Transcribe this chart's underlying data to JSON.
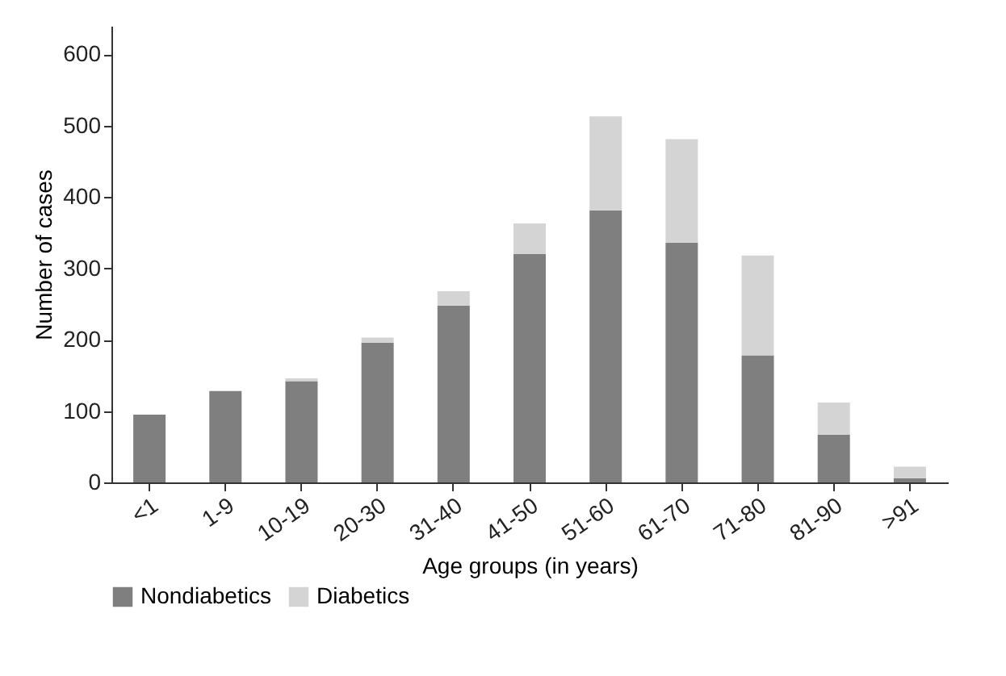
{
  "chart_data": {
    "type": "bar",
    "stacked": true,
    "xlabel": "Age groups (in years)",
    "ylabel": "Number of cases",
    "categories": [
      "<1",
      "1-9",
      "10-19",
      "20-30",
      "31-40",
      "41-50",
      "51-60",
      "61-70",
      "71-80",
      "81-90",
      ">91"
    ],
    "series": [
      {
        "name": "Nondiabetics",
        "color": "#7f7f7f",
        "values": [
          95,
          128,
          142,
          196,
          248,
          320,
          381,
          336,
          178,
          67,
          6
        ]
      },
      {
        "name": "Diabetics",
        "color": "#d4d4d4",
        "values": [
          0,
          0,
          4,
          7,
          20,
          43,
          132,
          145,
          140,
          45,
          16
        ]
      }
    ],
    "ylim": [
      0,
      640
    ],
    "yticks": [
      0,
      100,
      200,
      300,
      400,
      500,
      600
    ],
    "grid": false,
    "legend": "bottom"
  }
}
